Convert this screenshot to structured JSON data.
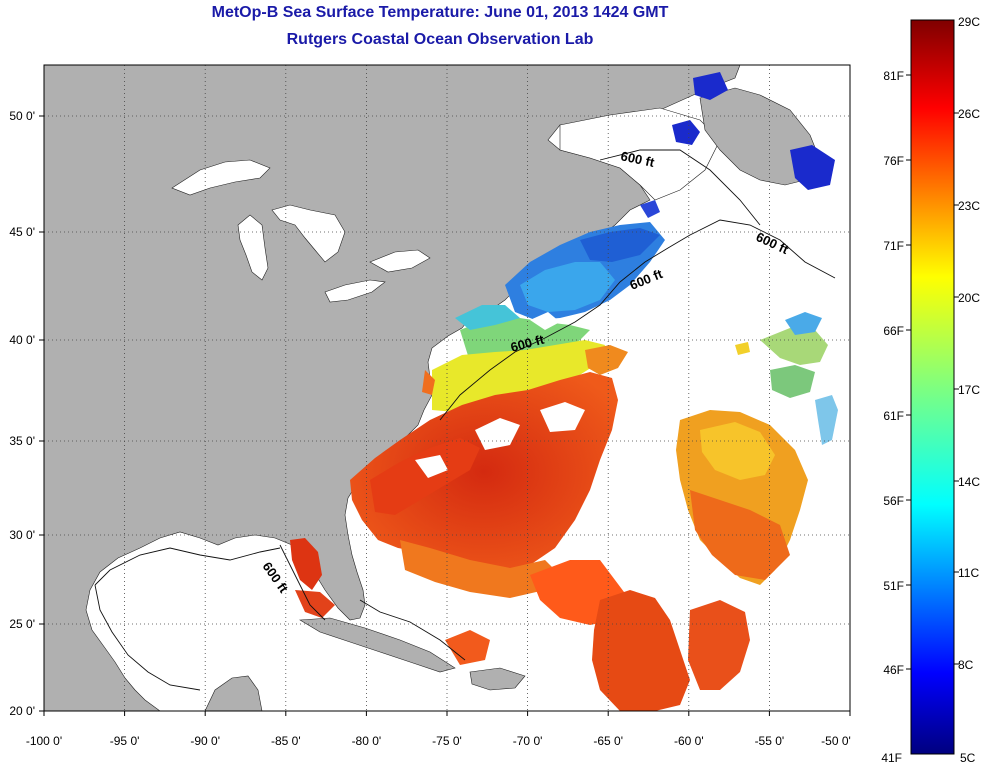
{
  "title": {
    "line1": "MetOp-B Sea Surface Temperature:  June 01, 2013 1424 GMT",
    "line2": "Rutgers Coastal Ocean Observation Lab"
  },
  "axes": {
    "lon_labels": [
      "-100 0'",
      "-95 0'",
      "-90 0'",
      "-85 0'",
      "-80 0'",
      "-75 0'",
      "-70 0'",
      "-65 0'",
      "-60 0'",
      "-55 0'",
      "-50 0'"
    ],
    "lat_labels": [
      "50 0'",
      "45 0'",
      "40 0'",
      "35 0'",
      "30 0'",
      "25 0'",
      "20 0'"
    ]
  },
  "contour_label": "600 ft",
  "colorbar": {
    "celsius_labels": [
      "29C",
      "26C",
      "23C",
      "20C",
      "17C",
      "14C",
      "11C",
      "8C",
      "5C"
    ],
    "fahrenheit_labels": [
      "81F",
      "76F",
      "71F",
      "66F",
      "61F",
      "56F",
      "51F",
      "46F",
      "41F"
    ]
  },
  "colors": {
    "title": "#1a1aa8",
    "land": "#b0b0b0",
    "no_data": "#ffffff",
    "grid": "#444444"
  }
}
